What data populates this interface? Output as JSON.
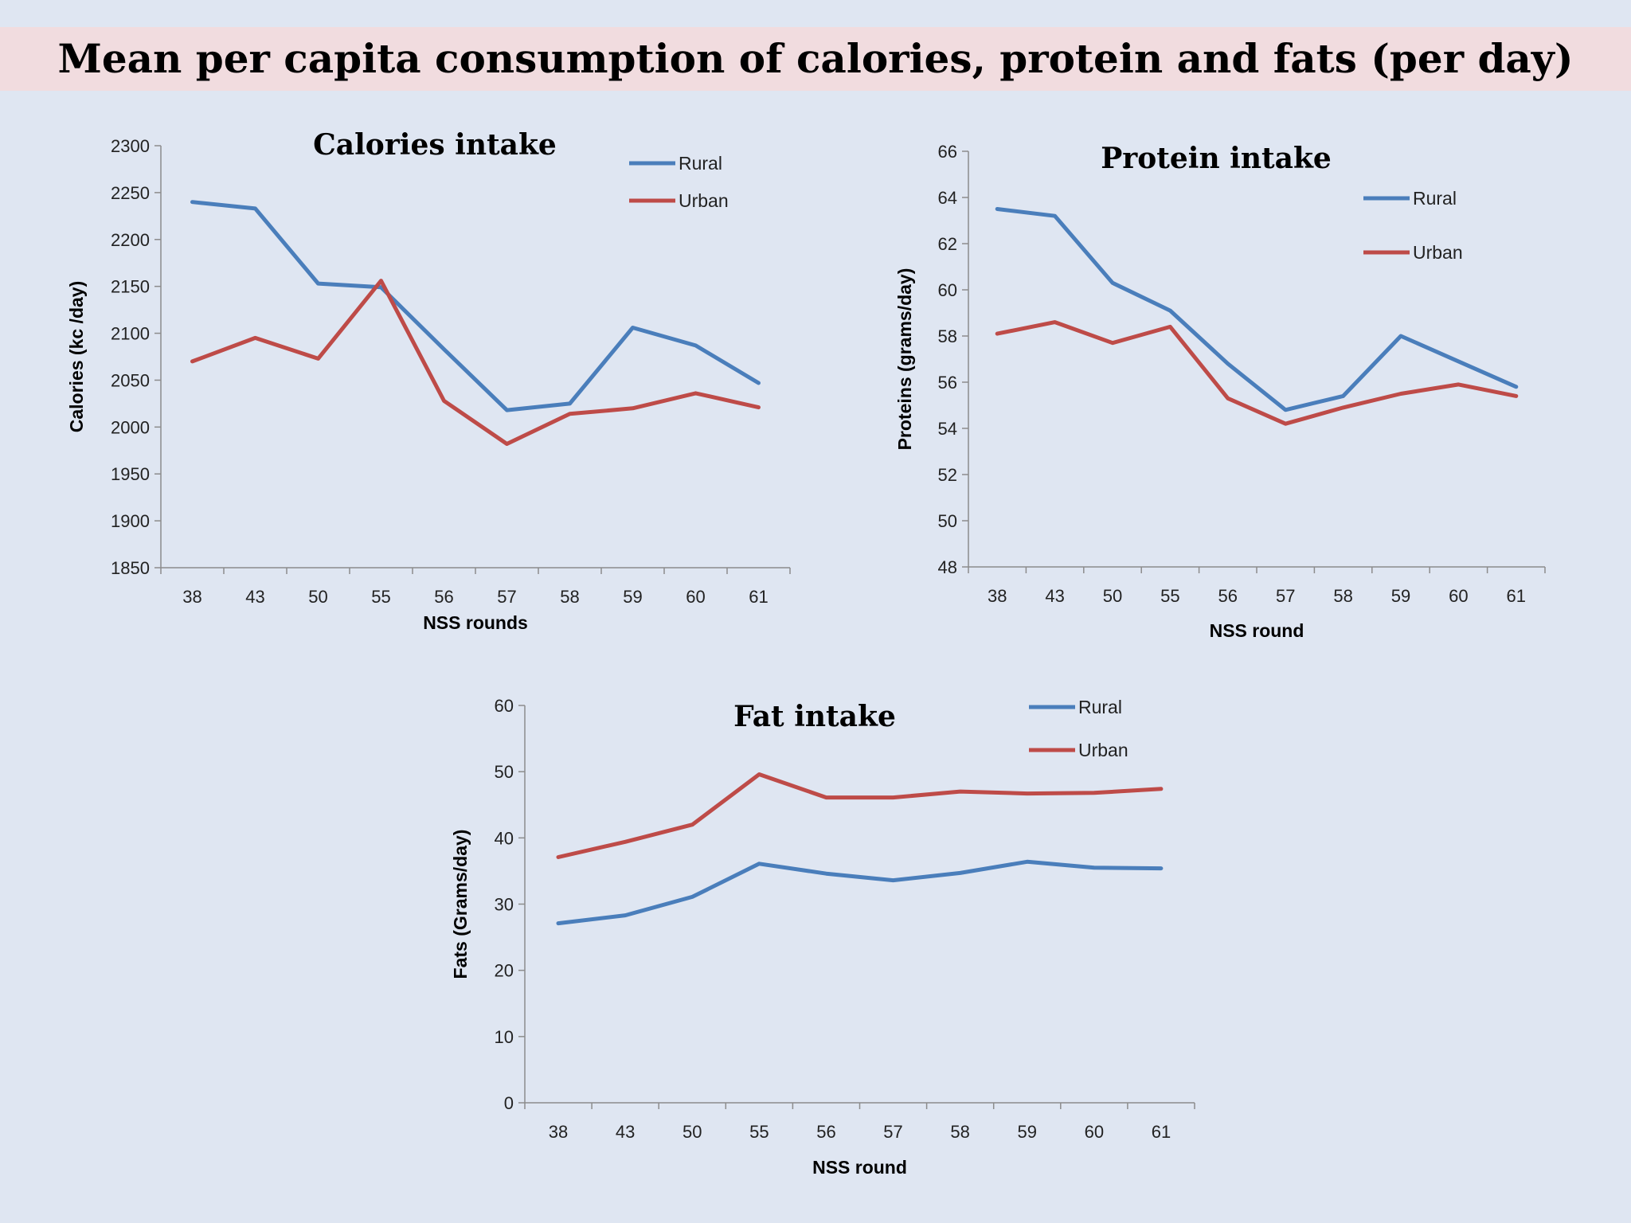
{
  "page": {
    "title": "Mean per capita consumption of calories, protein and fats (per day)"
  },
  "colors": {
    "rural": "#4a7ebb",
    "urban": "#be4b48",
    "axis": "#8c8c8c"
  },
  "chart_data": [
    {
      "id": "calories",
      "type": "line",
      "title": "Calories intake",
      "xlabel": "NSS rounds",
      "ylabel": "Calories  (kc /day)",
      "ylim": [
        1850,
        2300
      ],
      "yticks": [
        1850,
        1900,
        1950,
        2000,
        2050,
        2100,
        2150,
        2200,
        2250,
        2300
      ],
      "categories": [
        "38",
        "43",
        "50",
        "55",
        "56",
        "57",
        "58",
        "59",
        "60",
        "61"
      ],
      "legend_position": "top-right",
      "grid": false,
      "series": [
        {
          "name": "Rural",
          "values": [
            2240,
            2233,
            2153,
            2149,
            2083,
            2018,
            2025,
            2106,
            2087,
            2047
          ]
        },
        {
          "name": "Urban",
          "values": [
            2070,
            2095,
            2073,
            2156,
            2028,
            1982,
            2014,
            2020,
            2036,
            2021
          ]
        }
      ]
    },
    {
      "id": "protein",
      "type": "line",
      "title": "Protein intake",
      "xlabel": "NSS round",
      "ylabel": "Proteins (grams/day)",
      "ylim": [
        48,
        66
      ],
      "yticks": [
        48,
        50,
        52,
        54,
        56,
        58,
        60,
        62,
        64,
        66
      ],
      "categories": [
        "38",
        "43",
        "50",
        "55",
        "56",
        "57",
        "58",
        "59",
        "60",
        "61"
      ],
      "legend_position": "top-right",
      "grid": false,
      "series": [
        {
          "name": "Rural",
          "values": [
            63.5,
            63.2,
            60.3,
            59.1,
            56.8,
            54.8,
            55.4,
            58.0,
            56.9,
            55.8
          ]
        },
        {
          "name": "Urban",
          "values": [
            58.1,
            58.6,
            57.7,
            58.4,
            55.3,
            54.2,
            54.9,
            55.5,
            55.9,
            55.4
          ]
        }
      ]
    },
    {
      "id": "fat",
      "type": "line",
      "title": "Fat intake",
      "xlabel": "NSS round",
      "ylabel": "Fats (Grams/day)",
      "ylim": [
        0,
        60
      ],
      "yticks": [
        0,
        10,
        20,
        30,
        40,
        50,
        60
      ],
      "categories": [
        "38",
        "43",
        "50",
        "55",
        "56",
        "57",
        "58",
        "59",
        "60",
        "61"
      ],
      "legend_position": "top-right",
      "grid": false,
      "series": [
        {
          "name": "Rural",
          "values": [
            27.1,
            28.3,
            31.1,
            36.1,
            34.6,
            33.6,
            34.7,
            36.4,
            35.5,
            35.4
          ]
        },
        {
          "name": "Urban",
          "values": [
            37.1,
            39.4,
            42.0,
            49.6,
            46.1,
            46.1,
            47.0,
            46.7,
            46.8,
            47.4
          ]
        }
      ]
    }
  ]
}
